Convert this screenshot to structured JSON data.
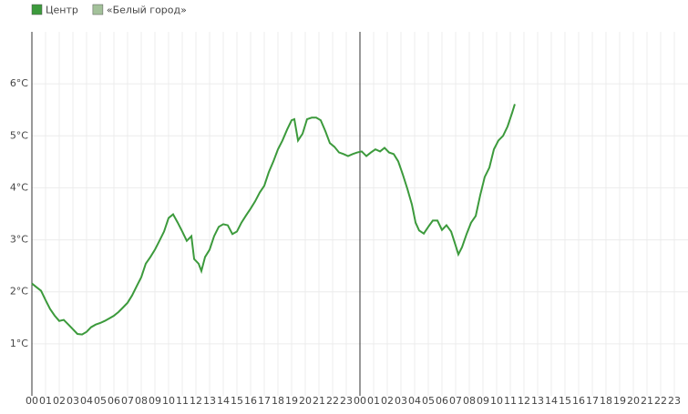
{
  "chart_data": {
    "type": "line",
    "xlim": [
      0,
      48
    ],
    "ylim": [
      0,
      7
    ],
    "xticks": [
      {
        "value": 0,
        "label": "00"
      },
      {
        "value": 1,
        "label": "01"
      },
      {
        "value": 2,
        "label": "02"
      },
      {
        "value": 3,
        "label": "03"
      },
      {
        "value": 4,
        "label": "04"
      },
      {
        "value": 5,
        "label": "05"
      },
      {
        "value": 6,
        "label": "06"
      },
      {
        "value": 7,
        "label": "07"
      },
      {
        "value": 8,
        "label": "08"
      },
      {
        "value": 9,
        "label": "09"
      },
      10,
      11,
      12,
      13,
      14,
      15,
      16,
      17,
      18,
      19,
      20,
      21,
      22,
      23,
      {
        "value": 24,
        "label": "00"
      },
      {
        "value": 25,
        "label": "01"
      },
      {
        "value": 26,
        "label": "02"
      },
      {
        "value": 27,
        "label": "03"
      },
      {
        "value": 28,
        "label": "04"
      },
      {
        "value": 29,
        "label": "05"
      },
      {
        "value": 30,
        "label": "06"
      },
      {
        "value": 31,
        "label": "07"
      },
      {
        "value": 32,
        "label": "08"
      },
      {
        "value": 33,
        "label": "09"
      },
      {
        "value": 34,
        "label": "10"
      },
      {
        "value": 35,
        "label": "11"
      },
      {
        "value": 36,
        "label": "12"
      },
      {
        "value": 37,
        "label": "13"
      },
      {
        "value": 38,
        "label": "14"
      },
      {
        "value": 39,
        "label": "15"
      },
      {
        "value": 40,
        "label": "16"
      },
      {
        "value": 41,
        "label": "17"
      },
      {
        "value": 42,
        "label": "18"
      },
      {
        "value": 43,
        "label": "19"
      },
      {
        "value": 44,
        "label": "20"
      },
      {
        "value": 45,
        "label": "21"
      },
      {
        "value": 46,
        "label": "22"
      },
      {
        "value": 47,
        "label": "23"
      }
    ],
    "yticks": [
      {
        "value": 1,
        "label": "1°C"
      },
      {
        "value": 2,
        "label": "2°C"
      },
      {
        "value": 3,
        "label": "3°C"
      },
      {
        "value": 4,
        "label": "4°C"
      },
      {
        "value": 5,
        "label": "5°C"
      },
      {
        "value": 6,
        "label": "6°C"
      }
    ],
    "grid": true,
    "series": [
      {
        "name": "Центр",
        "color": "#3c9a3c",
        "x": [
          0,
          0.33,
          0.67,
          1,
          1.33,
          1.67,
          2,
          2.33,
          2.67,
          3,
          3.33,
          3.67,
          4,
          4.33,
          4.67,
          5,
          5.33,
          5.67,
          6,
          6.33,
          6.67,
          7,
          7.33,
          7.67,
          8,
          8.33,
          8.67,
          9,
          9.33,
          9.67,
          10,
          10.33,
          10.67,
          11,
          11.33,
          11.67,
          11.87,
          12.2,
          12.4,
          12.67,
          13,
          13.33,
          13.67,
          14,
          14.33,
          14.67,
          15,
          15.33,
          15.67,
          16,
          16.33,
          16.67,
          17,
          17.33,
          17.67,
          18,
          18.33,
          18.67,
          19,
          19.2,
          19.47,
          19.8,
          20.13,
          20.47,
          20.8,
          21.13,
          21.47,
          21.8,
          22.13,
          22.47,
          22.8,
          23.13,
          23.47,
          23.8,
          24.13,
          24.47,
          24.8,
          25.13,
          25.47,
          25.8,
          26.13,
          26.47,
          26.8,
          27.13,
          27.47,
          27.8,
          28.07,
          28.33,
          28.67,
          29,
          29.33,
          29.67,
          30,
          30.33,
          30.67,
          31,
          31.2,
          31.47,
          31.8,
          32.13,
          32.47,
          32.8,
          33.13,
          33.47,
          33.8,
          34.13,
          34.47,
          34.8,
          35.13,
          35.33
        ],
        "values": [
          2.16,
          2.09,
          2.02,
          1.84,
          1.67,
          1.54,
          1.44,
          1.46,
          1.37,
          1.28,
          1.19,
          1.18,
          1.23,
          1.32,
          1.37,
          1.4,
          1.44,
          1.49,
          1.54,
          1.61,
          1.7,
          1.79,
          1.93,
          2.11,
          2.28,
          2.54,
          2.67,
          2.81,
          2.98,
          3.16,
          3.42,
          3.49,
          3.33,
          3.16,
          2.98,
          3.07,
          2.63,
          2.54,
          2.4,
          2.67,
          2.81,
          3.07,
          3.25,
          3.3,
          3.28,
          3.11,
          3.16,
          3.33,
          3.47,
          3.6,
          3.74,
          3.91,
          4.04,
          4.3,
          4.51,
          4.74,
          4.91,
          5.12,
          5.3,
          5.32,
          4.91,
          5.04,
          5.32,
          5.35,
          5.35,
          5.3,
          5.09,
          4.86,
          4.79,
          4.68,
          4.65,
          4.61,
          4.65,
          4.68,
          4.7,
          4.61,
          4.68,
          4.74,
          4.7,
          4.77,
          4.68,
          4.65,
          4.51,
          4.26,
          3.98,
          3.68,
          3.33,
          3.18,
          3.12,
          3.25,
          3.37,
          3.37,
          3.19,
          3.28,
          3.16,
          2.89,
          2.72,
          2.86,
          3.11,
          3.33,
          3.46,
          3.86,
          4.21,
          4.39,
          4.74,
          4.91,
          5,
          5.18,
          5.44,
          5.61
        ]
      },
      {
        "name": "«Белый город»",
        "color": "#a3c19a",
        "x": [],
        "values": []
      }
    ]
  }
}
